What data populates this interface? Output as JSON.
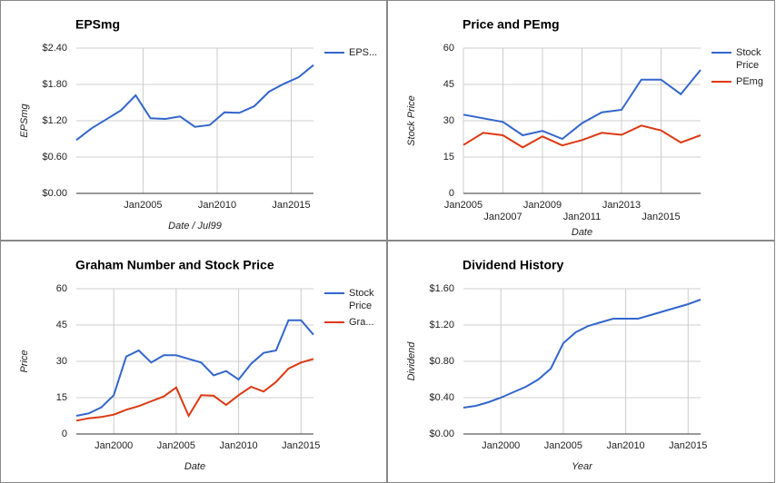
{
  "chart_data": [
    {
      "type": "line",
      "title": "EPSmg",
      "xlabel": "Date / Jul99",
      "ylabel": "EPSmg",
      "x": [
        2000.5,
        2001.5,
        2002.5,
        2003.5,
        2004.5,
        2005.5,
        2006.5,
        2007.5,
        2008.5,
        2009.5,
        2010.5,
        2011.5,
        2012.5,
        2013.5,
        2014.5,
        2015.5,
        2016.5
      ],
      "xlim": [
        2000.5,
        2016.5
      ],
      "xticks": [
        {
          "value": 2005,
          "label": "Jan2005"
        },
        {
          "value": 2010,
          "label": "Jan2010"
        },
        {
          "value": 2015,
          "label": "Jan2015"
        }
      ],
      "ylim": [
        0,
        2.4
      ],
      "yticks": [
        {
          "value": 0,
          "label": "$0.00"
        },
        {
          "value": 0.6,
          "label": "$0.60"
        },
        {
          "value": 1.2,
          "label": "$1.20"
        },
        {
          "value": 1.8,
          "label": "$1.80"
        },
        {
          "value": 2.4,
          "label": "$2.40"
        }
      ],
      "grid": true,
      "legend": "right",
      "series": [
        {
          "name": "EPS...",
          "color": "#3366cc",
          "values": [
            0.88,
            1.07,
            1.22,
            1.37,
            1.62,
            1.24,
            1.23,
            1.27,
            1.1,
            1.13,
            1.34,
            1.33,
            1.44,
            1.68,
            1.81,
            1.92,
            2.12
          ]
        }
      ]
    },
    {
      "type": "line",
      "title": "Price and PEmg",
      "xlabel": "Date",
      "ylabel": "Stock Price",
      "x": [
        2005,
        2006,
        2007,
        2008,
        2009,
        2010,
        2011,
        2012,
        2013,
        2014,
        2015,
        2016,
        2017
      ],
      "xlim": [
        2005,
        2017
      ],
      "xticks": [
        {
          "value": 2005,
          "label": "Jan2005"
        },
        {
          "value": 2007,
          "label": "Jan2007"
        },
        {
          "value": 2009,
          "label": "Jan2009"
        },
        {
          "value": 2011,
          "label": "Jan2011"
        },
        {
          "value": 2013,
          "label": "Jan2013"
        },
        {
          "value": 2015,
          "label": "Jan2015"
        }
      ],
      "ylim": [
        0,
        60
      ],
      "yticks": [
        0,
        15,
        30,
        45,
        60
      ],
      "grid": true,
      "legend": "right",
      "series": [
        {
          "name": "Stock Price",
          "color": "#3366cc",
          "values": [
            32.5,
            31,
            29.5,
            24,
            25.8,
            22.5,
            29,
            33.5,
            34.5,
            47,
            47,
            41,
            51
          ]
        },
        {
          "name": "PEmg",
          "color": "#dc3912",
          "values": [
            20,
            25,
            24,
            19,
            23.5,
            19.8,
            22,
            25,
            24.2,
            28,
            26,
            21,
            24
          ]
        }
      ]
    },
    {
      "type": "line",
      "title": "Graham Number and Stock Price",
      "xlabel": "Date",
      "ylabel": "Price",
      "x": [
        1997,
        1998,
        1999,
        2000,
        2001,
        2002,
        2003,
        2004,
        2005,
        2006,
        2007,
        2008,
        2009,
        2010,
        2011,
        2012,
        2013,
        2014,
        2015,
        2016
      ],
      "xlim": [
        1997,
        2016
      ],
      "xticks": [
        {
          "value": 2000,
          "label": "Jan2000"
        },
        {
          "value": 2005,
          "label": "Jan2005"
        },
        {
          "value": 2010,
          "label": "Jan2010"
        },
        {
          "value": 2015,
          "label": "Jan2015"
        }
      ],
      "ylim": [
        0,
        60
      ],
      "yticks": [
        0,
        15,
        30,
        45,
        60
      ],
      "grid": true,
      "legend": "right",
      "series": [
        {
          "name": "Stock Price",
          "color": "#3366cc",
          "values": [
            7.5,
            8.5,
            11,
            16,
            32,
            34.5,
            29.5,
            32.5,
            32.5,
            31,
            29.5,
            24.2,
            26,
            22.5,
            29,
            33.5,
            34.5,
            47,
            47,
            41
          ]
        },
        {
          "name": "Gra...",
          "color": "#dc3912",
          "values": [
            5.5,
            6.5,
            7,
            8,
            10,
            11.5,
            13.5,
            15.5,
            19.2,
            7.5,
            16,
            15.8,
            12,
            16,
            19.5,
            17.5,
            21.5,
            27,
            29.5,
            31
          ]
        }
      ]
    },
    {
      "type": "line",
      "title": "Dividend History",
      "xlabel": "Year",
      "ylabel": "Dividend",
      "x": [
        1997,
        1998,
        1999,
        2000,
        2001,
        2002,
        2003,
        2004,
        2005,
        2006,
        2007,
        2008,
        2009,
        2010,
        2011,
        2012,
        2013,
        2014,
        2015,
        2016
      ],
      "xlim": [
        1997,
        2016
      ],
      "xticks": [
        {
          "value": 2000,
          "label": "Jan2000"
        },
        {
          "value": 2005,
          "label": "Jan2005"
        },
        {
          "value": 2010,
          "label": "Jan2010"
        },
        {
          "value": 2015,
          "label": "Jan2015"
        }
      ],
      "ylim": [
        0,
        1.6
      ],
      "yticks": [
        {
          "value": 0,
          "label": "$0.00"
        },
        {
          "value": 0.4,
          "label": "$0.40"
        },
        {
          "value": 0.8,
          "label": "$0.80"
        },
        {
          "value": 1.2,
          "label": "$1.20"
        },
        {
          "value": 1.6,
          "label": "$1.60"
        }
      ],
      "grid": true,
      "series": [
        {
          "color": "#3366cc",
          "values": [
            0.29,
            0.31,
            0.35,
            0.4,
            0.46,
            0.52,
            0.6,
            0.72,
            1.0,
            1.12,
            1.19,
            1.23,
            1.27,
            1.27,
            1.27,
            1.31,
            1.35,
            1.39,
            1.43,
            1.48
          ]
        }
      ]
    }
  ]
}
